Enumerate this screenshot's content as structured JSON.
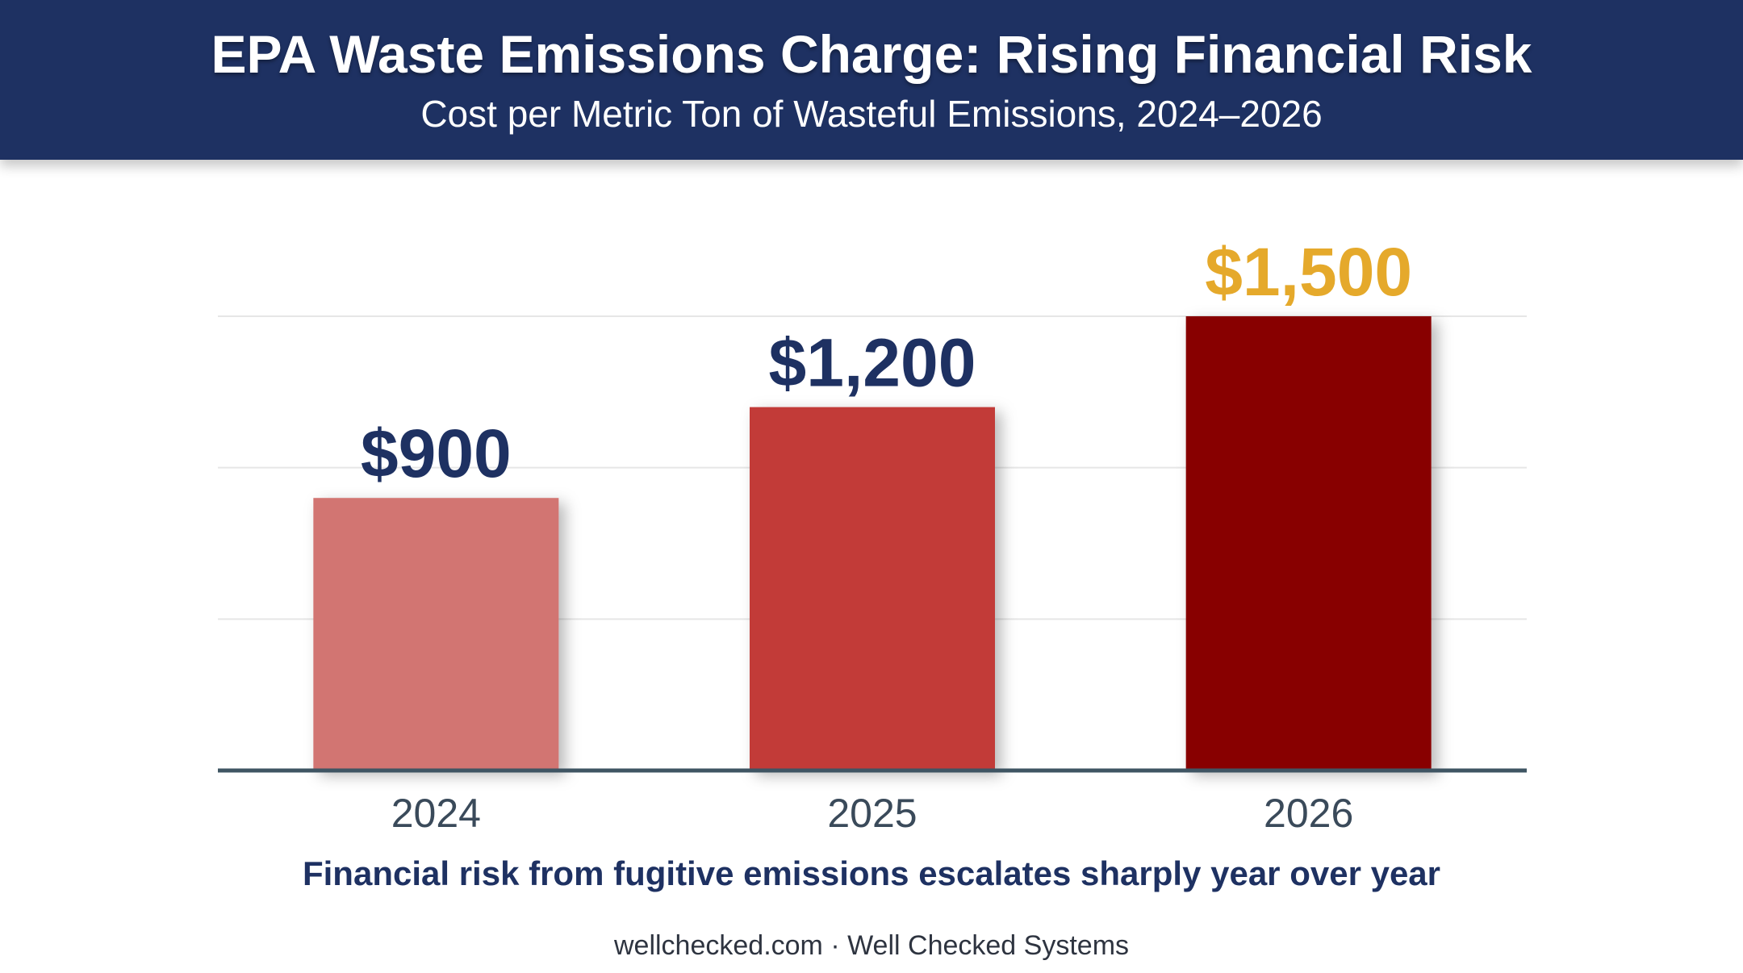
{
  "header": {
    "title": "EPA Waste Emissions Charge: Rising Financial Risk",
    "subtitle": "Cost per Metric Ton of Wasteful Emissions, 2024–2026"
  },
  "chart_data": {
    "type": "bar",
    "title": "EPA Waste Emissions Charge: Rising Financial Risk",
    "subtitle": "Cost per Metric Ton of Wasteful Emissions, 2024–2026",
    "categories": [
      "2024",
      "2025",
      "2026"
    ],
    "values": [
      900,
      1200,
      1500
    ],
    "data_labels": [
      "$900",
      "$1,200",
      "$1,500"
    ],
    "xlabel": "",
    "ylabel": "",
    "ylim": [
      0,
      1500
    ],
    "grid": true,
    "legend": "none",
    "colors": {
      "bars": [
        "#d27472",
        "#c23a38",
        "#880000"
      ],
      "labels": [
        "#1e3162",
        "#1e3162",
        "#e5a92b"
      ],
      "axis": "#3f5563",
      "grid": "#e6e6e6",
      "tick_text": "#3a4a5a"
    }
  },
  "footnote": "Financial risk from fugitive emissions escalates sharply year over year",
  "credit": "wellchecked.com · Well Checked Systems"
}
